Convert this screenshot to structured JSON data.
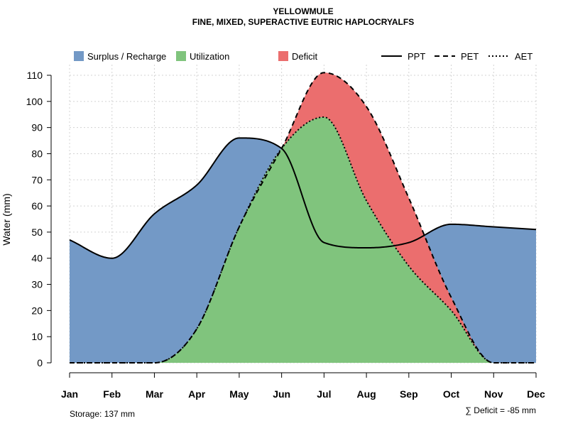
{
  "chart_data": {
    "type": "area",
    "title": "YELLOWMULE",
    "subtitle": "FINE, MIXED, SUPERACTIVE EUTRIC HAPLOCRYALFS",
    "ylabel": "Water (mm)",
    "ylim": [
      0,
      110
    ],
    "yticks": [
      "0",
      "10",
      "20",
      "30",
      "40",
      "50",
      "60",
      "70",
      "80",
      "90",
      "100",
      "110"
    ],
    "categories": [
      "Jan",
      "Feb",
      "Mar",
      "Apr",
      "May",
      "Jun",
      "Jul",
      "Aug",
      "Sep",
      "Oct",
      "Nov",
      "Dec"
    ],
    "series": [
      {
        "name": "PPT",
        "style": "solid",
        "values": [
          47,
          40,
          57,
          68,
          86,
          82,
          46,
          44,
          46,
          53,
          52,
          51
        ]
      },
      {
        "name": "PET",
        "style": "dashed",
        "values": [
          0,
          0,
          0,
          13,
          52,
          82,
          111,
          98,
          63,
          25,
          0,
          0
        ]
      },
      {
        "name": "AET",
        "style": "dotted",
        "values": [
          0,
          0,
          0,
          13,
          52,
          82,
          94,
          62,
          37,
          20,
          0,
          0
        ]
      }
    ],
    "legend": {
      "areas": [
        {
          "label": "Surplus / Recharge",
          "color": "#7399C6"
        },
        {
          "label": "Utilization",
          "color": "#80C47D"
        },
        {
          "label": "Deficit",
          "color": "#EB6E6E"
        }
      ],
      "lines": [
        {
          "label": "PPT",
          "style": "solid"
        },
        {
          "label": "PET",
          "style": "dashed"
        },
        {
          "label": "AET",
          "style": "dotted"
        }
      ]
    },
    "annotations": {
      "storage": "Storage: 137 mm",
      "deficit": "∑ Deficit = -85 mm"
    }
  }
}
